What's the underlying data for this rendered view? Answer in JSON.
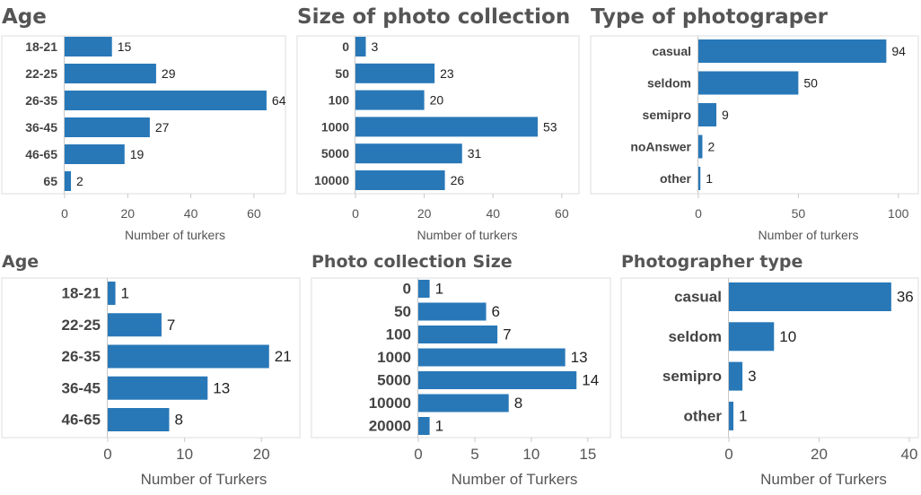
{
  "chart_data": [
    {
      "type": "bar",
      "orientation": "horizontal",
      "title": "Age",
      "categories": [
        "18-21",
        "22-25",
        "26-35",
        "36-45",
        "46-65",
        "65"
      ],
      "values": [
        15,
        29,
        64,
        27,
        19,
        2
      ],
      "xlabel": "Number of turkers",
      "xlim": [
        0,
        70
      ],
      "xticks": [
        0,
        20,
        40,
        60
      ],
      "color": "#2878b8"
    },
    {
      "type": "bar",
      "orientation": "horizontal",
      "title": "Size of photo collection",
      "categories": [
        "0",
        "50",
        "100",
        "1000",
        "5000",
        "10000"
      ],
      "values": [
        3,
        23,
        20,
        53,
        31,
        26
      ],
      "xlabel": "Number of turkers",
      "xlim": [
        0,
        65
      ],
      "xticks": [
        0,
        20,
        40,
        60
      ],
      "color": "#2878b8"
    },
    {
      "type": "bar",
      "orientation": "horizontal",
      "title": "Type of photograper",
      "categories": [
        "casual",
        "seldom",
        "semipro",
        "noAnswer",
        "other"
      ],
      "values": [
        94,
        50,
        9,
        2,
        1
      ],
      "xlabel": "Number of turkers",
      "xlim": [
        0,
        110
      ],
      "xticks": [
        0,
        50,
        100
      ],
      "color": "#2878b8"
    },
    {
      "type": "bar",
      "orientation": "horizontal",
      "title": "Age",
      "categories": [
        "18-21",
        "22-25",
        "26-35",
        "36-45",
        "46-65"
      ],
      "values": [
        1,
        7,
        21,
        13,
        8
      ],
      "xlabel": "Number of Turkers",
      "xlim": [
        0,
        25
      ],
      "xticks": [
        0,
        10,
        20
      ],
      "color": "#2878b8"
    },
    {
      "type": "bar",
      "orientation": "horizontal",
      "title": "Photo collection Size",
      "categories": [
        "0",
        "50",
        "100",
        "1000",
        "5000",
        "10000",
        "20000"
      ],
      "values": [
        1,
        6,
        7,
        13,
        14,
        8,
        1
      ],
      "xlabel": "Number of Turkers",
      "xlim": [
        0,
        17
      ],
      "xticks": [
        0,
        5,
        10,
        15
      ],
      "color": "#2878b8"
    },
    {
      "type": "bar",
      "orientation": "horizontal",
      "title": "Photographer type",
      "categories": [
        "casual",
        "seldom",
        "semipro",
        "other"
      ],
      "values": [
        36,
        10,
        3,
        1
      ],
      "xlabel": "Number of Turkers",
      "xlim": [
        0,
        42
      ],
      "xticks": [
        0,
        20,
        40
      ],
      "color": "#2878b8"
    }
  ]
}
